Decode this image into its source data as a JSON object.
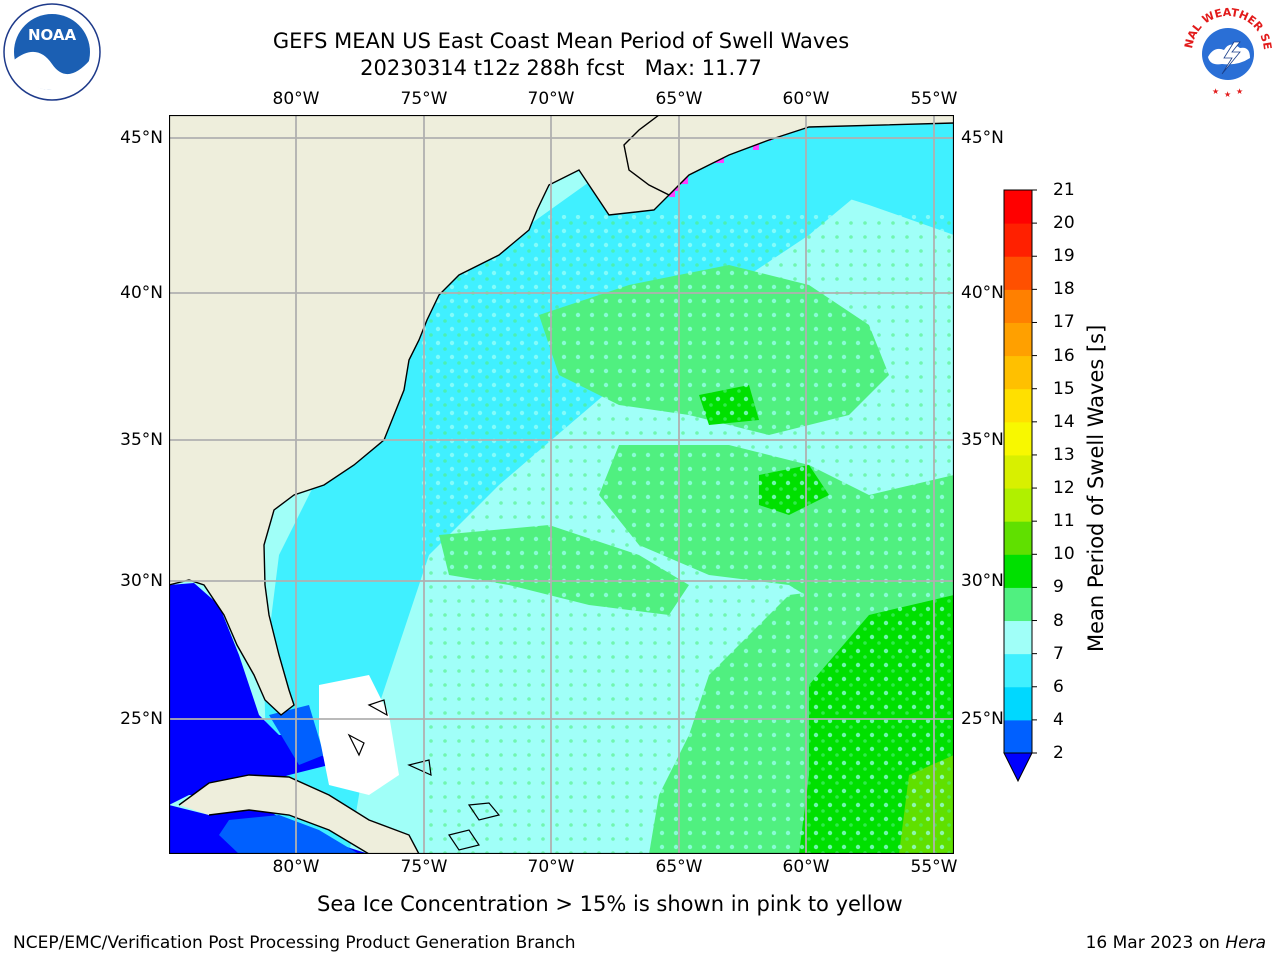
{
  "header": {
    "title_line1": "GEFS MEAN US East Coast Mean Period of Swell Waves",
    "title_line2": "20230314 t12z 288h fcst   Max: 11.77"
  },
  "logos": {
    "noaa_text": "NOAA",
    "noaa_ring": "NATIONAL OCEANIC AND ATMOSPHERIC ADMINISTRATION · U.S. DEPARTMENT OF COMMERCE",
    "nws_ring": "NATIONAL WEATHER SERVICE"
  },
  "map": {
    "lon_labels": [
      "80°W",
      "75°W",
      "70°W",
      "65°W",
      "60°W",
      "55°W"
    ],
    "lat_labels": [
      "45°N",
      "40°N",
      "35°N",
      "30°N",
      "25°N"
    ],
    "extent": {
      "lon_min": -85,
      "lon_max": -54.2,
      "lat_min": 20.3,
      "lat_max": 45.8
    },
    "colors": {
      "land": "#eeeedc",
      "grid": "#b0b0b0",
      "coast": "#000000"
    }
  },
  "colorbar": {
    "title": "Mean Period of Swell Waves [s]",
    "tick_labels": [
      "2",
      "4",
      "6",
      "7",
      "8",
      "9",
      "10",
      "11",
      "12",
      "13",
      "14",
      "15",
      "16",
      "17",
      "18",
      "19",
      "20",
      "21"
    ],
    "colors": [
      "#0060ff",
      "#00d8ff",
      "#40f0ff",
      "#a0fff8",
      "#50f080",
      "#00e000",
      "#60e000",
      "#b0f000",
      "#d8f000",
      "#f8f800",
      "#ffe000",
      "#ffc000",
      "#ffa000",
      "#ff8000",
      "#ff5000",
      "#ff2000",
      "#ff0000"
    ],
    "under_color": "#0000ff"
  },
  "notes": {
    "ice_note": "Sea Ice Concentration > 15% is shown in pink to yellow"
  },
  "footer": {
    "left": "NCEP/EMC/Verification Post Processing Product Generation Branch",
    "right_date": "16 Mar 2023 on ",
    "right_machine": "Hera"
  }
}
